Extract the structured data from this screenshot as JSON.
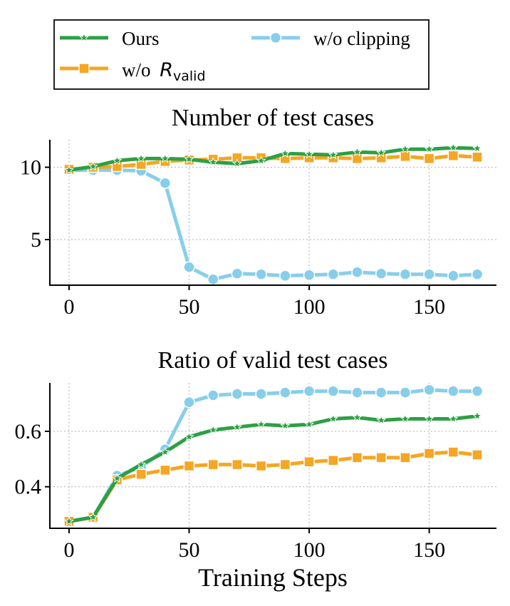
{
  "legend": {
    "items": [
      {
        "label": "Ours",
        "series": "ours"
      },
      {
        "label": "w/o ",
        "math": "R",
        "sub": "valid",
        "series": "noR"
      },
      {
        "label": "w/o clipping",
        "series": "noclip"
      }
    ]
  },
  "colors": {
    "ours": "#2ca044",
    "noR": "#f5a623",
    "noclip": "#87ceeb",
    "grid": "#b0b0b0",
    "axis": "#000000"
  },
  "chart_data": [
    {
      "type": "line",
      "title": "Number of test cases",
      "xlabel": "",
      "ylabel": "",
      "xlim": [
        -8,
        178
      ],
      "ylim": [
        1.85,
        11.9
      ],
      "xticks": [
        0,
        50,
        100,
        150
      ],
      "yticks": [
        5,
        10
      ],
      "x": [
        0,
        10,
        20,
        30,
        40,
        50,
        60,
        70,
        80,
        90,
        100,
        110,
        120,
        130,
        140,
        150,
        160,
        170
      ],
      "series": [
        {
          "key": "ours",
          "marker": "star",
          "values": [
            9.8,
            10.05,
            10.45,
            10.6,
            10.6,
            10.55,
            10.35,
            10.25,
            10.45,
            10.95,
            10.9,
            10.85,
            11.05,
            11.0,
            11.25,
            11.25,
            11.35,
            11.3
          ]
        },
        {
          "key": "noR",
          "marker": "square",
          "values": [
            9.85,
            10.0,
            10.05,
            10.2,
            10.4,
            10.5,
            10.55,
            10.65,
            10.65,
            10.6,
            10.65,
            10.65,
            10.6,
            10.65,
            10.75,
            10.6,
            10.8,
            10.7
          ]
        },
        {
          "key": "noclip",
          "marker": "circle",
          "values": [
            9.8,
            9.8,
            9.8,
            9.75,
            8.9,
            3.1,
            2.25,
            2.65,
            2.6,
            2.5,
            2.55,
            2.6,
            2.75,
            2.65,
            2.6,
            2.6,
            2.5,
            2.6
          ]
        }
      ]
    },
    {
      "type": "line",
      "title": "Ratio of valid test cases",
      "xlabel": "Training Steps",
      "ylabel": "",
      "xlim": [
        -8,
        178
      ],
      "ylim": [
        0.25,
        0.775
      ],
      "xticks": [
        0,
        50,
        100,
        150
      ],
      "yticks": [
        0.4,
        0.6
      ],
      "ytick_labels": [
        "0.4",
        "0.6"
      ],
      "x": [
        0,
        10,
        20,
        30,
        40,
        50,
        60,
        70,
        80,
        90,
        100,
        110,
        120,
        130,
        140,
        150,
        160,
        170
      ],
      "series": [
        {
          "key": "ours",
          "marker": "star",
          "values": [
            0.275,
            0.29,
            0.43,
            0.48,
            0.525,
            0.58,
            0.605,
            0.615,
            0.625,
            0.62,
            0.625,
            0.645,
            0.65,
            0.64,
            0.645,
            0.645,
            0.645,
            0.655
          ]
        },
        {
          "key": "noR",
          "marker": "square",
          "values": [
            0.275,
            0.29,
            0.425,
            0.445,
            0.46,
            0.475,
            0.48,
            0.48,
            0.475,
            0.48,
            0.49,
            0.495,
            0.505,
            0.505,
            0.505,
            0.52,
            0.525,
            0.515
          ]
        },
        {
          "key": "noclip",
          "marker": "circle",
          "values": [
            0.275,
            0.29,
            0.44,
            0.47,
            0.535,
            0.705,
            0.73,
            0.735,
            0.735,
            0.74,
            0.745,
            0.745,
            0.74,
            0.74,
            0.74,
            0.75,
            0.745,
            0.745
          ]
        }
      ]
    }
  ]
}
